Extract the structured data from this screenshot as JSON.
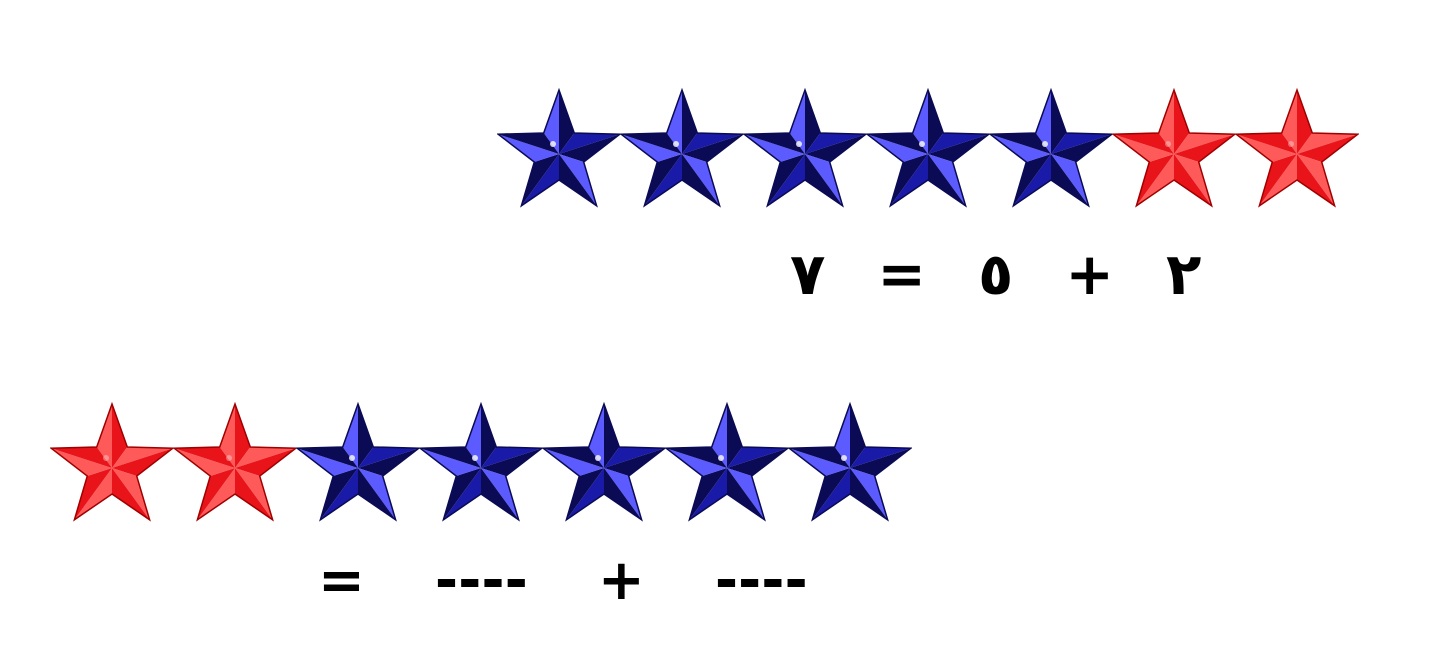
{
  "colors": {
    "blue_star": "#1a1aa8",
    "blue_star_light": "#5b5bff",
    "blue_star_dark": "#0a0a55",
    "red_star": "#e8141a",
    "red_star_light": "#ff5a5a",
    "red_star_dark": "#a00000",
    "text": "#000000"
  },
  "top_row": {
    "stars": [
      "blue",
      "blue",
      "blue",
      "blue",
      "blue",
      "red",
      "red"
    ]
  },
  "top_equation": {
    "tokens": [
      "٧",
      "=",
      "٥",
      "+",
      "٢"
    ]
  },
  "bottom_row": {
    "stars": [
      "red",
      "red",
      "blue",
      "blue",
      "blue",
      "blue",
      "blue"
    ]
  },
  "bottom_equation": {
    "tokens": [
      "=",
      "----",
      "+",
      "----"
    ]
  }
}
